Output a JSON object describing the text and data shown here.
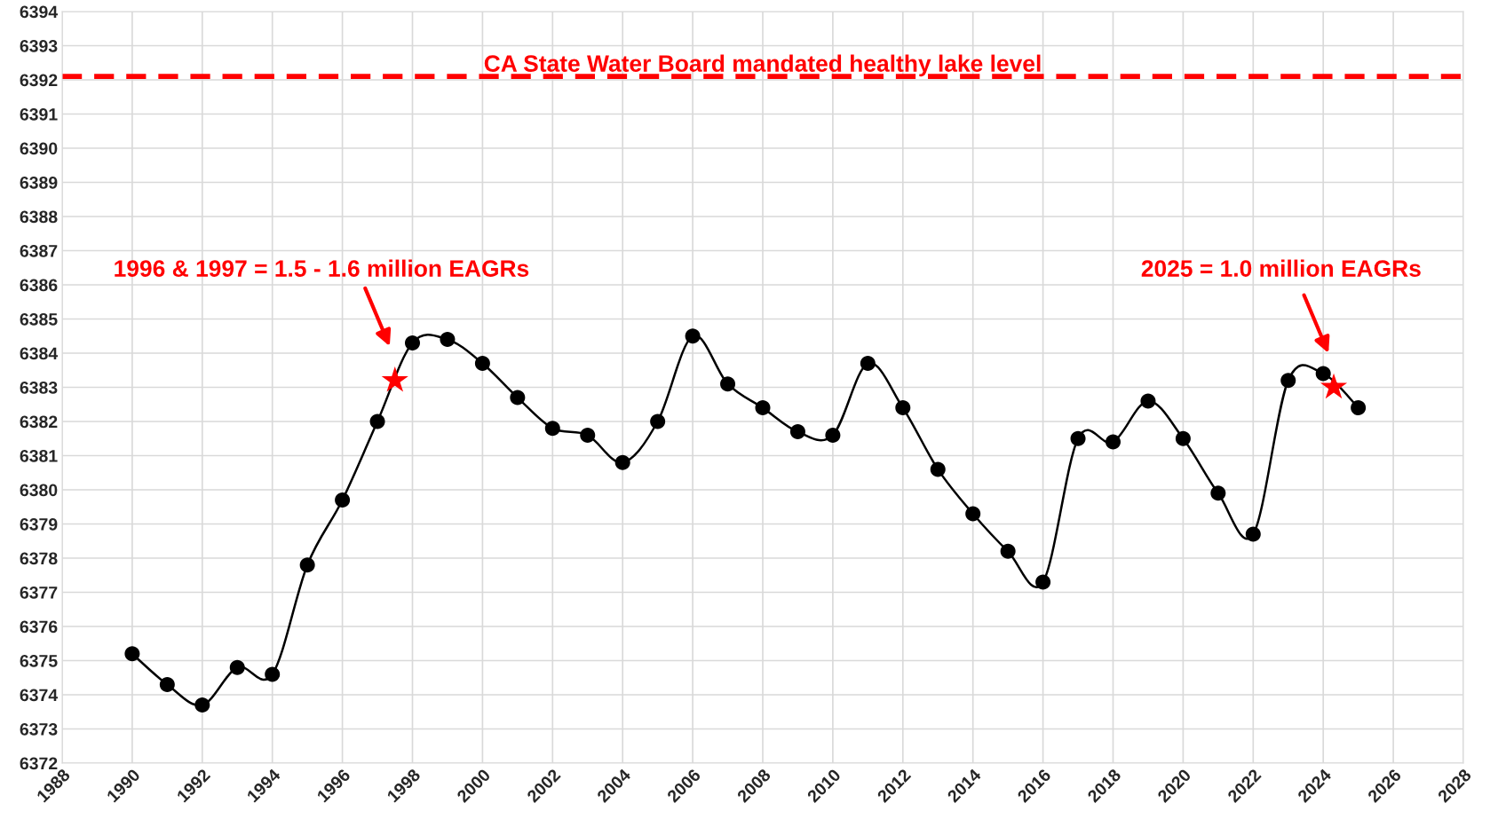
{
  "chart_data": {
    "type": "line",
    "x": [
      1990,
      1991,
      1992,
      1993,
      1994,
      1995,
      1996,
      1997,
      1998,
      1999,
      2000,
      2001,
      2002,
      2003,
      2004,
      2005,
      2006,
      2007,
      2008,
      2009,
      2010,
      2011,
      2012,
      2013,
      2014,
      2015,
      2016,
      2017,
      2018,
      2019,
      2020,
      2021,
      2022,
      2023,
      2024,
      2025
    ],
    "series": [
      {
        "type": "line",
        "color": "#000000",
        "marker": "circle",
        "values": [
          6375.2,
          6374.3,
          6373.7,
          6374.8,
          6374.6,
          6377.8,
          6379.7,
          6382.0,
          6384.3,
          6384.4,
          6383.7,
          6382.7,
          6381.8,
          6381.6,
          6380.8,
          6382.0,
          6384.5,
          6383.1,
          6382.4,
          6381.7,
          6381.6,
          6383.7,
          6382.4,
          6380.6,
          6379.3,
          6378.2,
          6377.3,
          6381.5,
          6381.4,
          6382.6,
          6381.5,
          6379.9,
          6378.7,
          6383.2,
          6383.4,
          6382.4
        ]
      },
      {
        "type": "scatter",
        "color": "#ff0000",
        "marker": "star",
        "x": [
          1997.5,
          2024.3
        ],
        "values": [
          6383.2,
          6383.0
        ]
      }
    ],
    "xlim": [
      1988,
      2028
    ],
    "xticks": [
      1988,
      1990,
      1992,
      1994,
      1996,
      1998,
      2000,
      2002,
      2004,
      2006,
      2008,
      2010,
      2012,
      2014,
      2016,
      2018,
      2020,
      2022,
      2024,
      2026,
      2028
    ],
    "ylim": [
      6372,
      6394
    ],
    "yticks": [
      6372,
      6373,
      6374,
      6375,
      6376,
      6377,
      6378,
      6379,
      6380,
      6381,
      6382,
      6383,
      6384,
      6385,
      6386,
      6387,
      6388,
      6389,
      6390,
      6391,
      6392,
      6393,
      6394
    ],
    "grid": true,
    "legend": false,
    "ref_lines": [
      {
        "axis": "y",
        "value": 6392.1,
        "label": "CA State Water Board mandated healthy lake level",
        "color": "#ff0000",
        "line_style": "dashed"
      }
    ],
    "annotations": [
      "1996 & 1997 = 1.5 - 1.6 million EAGRs",
      "2025 = 1.0 million EAGRs"
    ]
  }
}
